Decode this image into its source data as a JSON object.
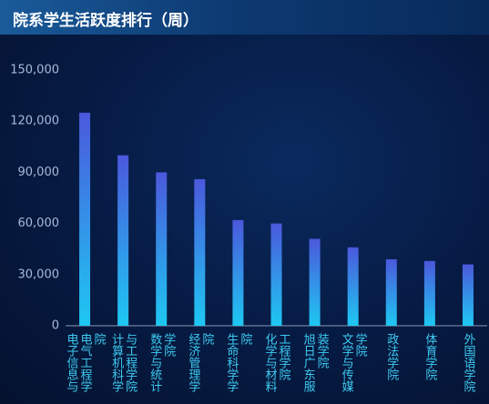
{
  "chart_data": {
    "type": "bar",
    "title": "院系学生活跃度排行（周）",
    "categories": [
      "电子信息与电气工程学院",
      "计算机科学与工程学院",
      "数学与统计学院",
      "经济管理学院",
      "生命科学学院",
      "化学与材料工程学院",
      "旭日广东服装学院",
      "文学与传媒学院",
      "政法学院",
      "体育学院",
      "外国语学院"
    ],
    "values": [
      125000,
      100000,
      90000,
      86000,
      62000,
      60000,
      51000,
      46000,
      39000,
      38000,
      36000
    ],
    "ylim": [
      0,
      150000
    ],
    "yticks": [
      0,
      {
        "value": 30000,
        "label": "30,000"
      },
      {
        "value": 60000,
        "label": "60,000"
      },
      {
        "value": 90000,
        "label": "90,000"
      },
      {
        "value": 120000,
        "label": "120,000"
      },
      {
        "value": 150000,
        "label": "150,000"
      }
    ],
    "grid": false
  }
}
